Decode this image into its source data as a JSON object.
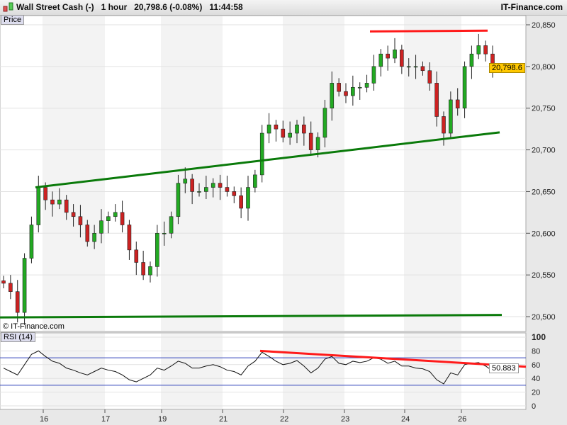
{
  "header": {
    "instrument": "Wall Street Cash (-)",
    "timeframe": "1 hour",
    "price": "20,798.6 (-0.08%)",
    "time": "11:44:58",
    "brand": "IT-Finance.com"
  },
  "price_panel": {
    "label": "Price",
    "watermark": "© IT-Finance.com",
    "last_price": "20,798.6",
    "ticks": [
      "20,850",
      "20,800",
      "20,750",
      "20,700",
      "20,650",
      "20,600",
      "20,550",
      "20,500"
    ]
  },
  "rsi_panel": {
    "label": "RSI (14)",
    "last_value": "50.883",
    "ticks": [
      "100",
      "80",
      "60",
      "40",
      "20",
      "0"
    ]
  },
  "x_axis": {
    "labels": [
      "16",
      "17",
      "19",
      "21",
      "22",
      "23",
      "24",
      "26"
    ]
  },
  "colors": {
    "up": "#22aa22",
    "down": "#cc2222",
    "support": "#0a7a0a",
    "resistance": "#ff1a1a"
  },
  "chart_data": {
    "type": "candlestick",
    "closes": [
      20540,
      20530,
      20505,
      20570,
      20610,
      20655,
      20640,
      20635,
      20640,
      20625,
      20620,
      20610,
      20590,
      20600,
      20615,
      20620,
      20625,
      20610,
      20580,
      20565,
      20550,
      20560,
      20600,
      20600,
      20620,
      20660,
      20665,
      20650,
      20650,
      20655,
      20660,
      20655,
      20650,
      20645,
      20630,
      20655,
      20670,
      20720,
      20730,
      20725,
      20715,
      20720,
      20730,
      20720,
      20700,
      20715,
      20750,
      20780,
      20770,
      20765,
      20775,
      20775,
      20780,
      20800,
      20815,
      20810,
      20820,
      20800,
      20800,
      20800,
      20795,
      20780,
      20740,
      20720,
      20760,
      20750,
      20800,
      20815,
      20825,
      20815,
      20798.6
    ],
    "rsi": [
      55,
      50,
      45,
      60,
      75,
      80,
      72,
      65,
      62,
      55,
      52,
      48,
      45,
      50,
      55,
      52,
      50,
      45,
      38,
      35,
      40,
      45,
      55,
      52,
      58,
      65,
      62,
      55,
      55,
      58,
      60,
      57,
      52,
      50,
      45,
      58,
      65,
      78,
      72,
      65,
      60,
      62,
      66,
      58,
      48,
      55,
      68,
      72,
      62,
      60,
      65,
      63,
      65,
      70,
      68,
      62,
      65,
      58,
      58,
      55,
      54,
      50,
      38,
      32,
      48,
      45,
      60,
      62,
      63,
      58,
      50.883
    ],
    "ylim": [
      20500,
      20850
    ],
    "rsi_ylim": [
      0,
      100
    ]
  }
}
